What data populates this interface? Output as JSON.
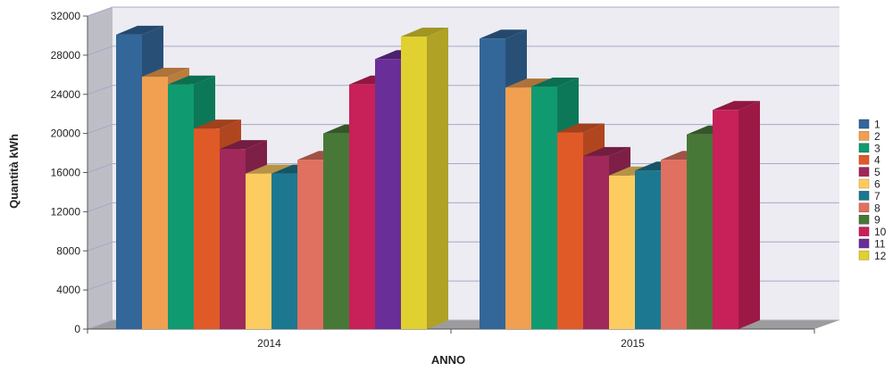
{
  "chart_data": {
    "type": "bar",
    "style": "3d-clustered-column",
    "title": "",
    "xlabel": "ANNO",
    "ylabel": "Quantità kWh",
    "categories": [
      "2014",
      "2015"
    ],
    "ylim": [
      0,
      32000
    ],
    "yticks": [
      0,
      4000,
      8000,
      12000,
      16000,
      20000,
      24000,
      28000,
      32000
    ],
    "grid": true,
    "legend_position": "right",
    "series": [
      {
        "name": "1",
        "color": "#336699",
        "values": [
          30100,
          29700
        ]
      },
      {
        "name": "2",
        "color": "#F0A050",
        "values": [
          25800,
          24700
        ]
      },
      {
        "name": "3",
        "color": "#109A70",
        "values": [
          25000,
          24800
        ]
      },
      {
        "name": "4",
        "color": "#E05A28",
        "values": [
          20500,
          20100
        ]
      },
      {
        "name": "5",
        "color": "#A0285A",
        "values": [
          18400,
          17700
        ]
      },
      {
        "name": "6",
        "color": "#FDCC60",
        "values": [
          15900,
          15700
        ]
      },
      {
        "name": "7",
        "color": "#1C7890",
        "values": [
          15900,
          16200
        ]
      },
      {
        "name": "8",
        "color": "#E07060",
        "values": [
          17300,
          17300
        ]
      },
      {
        "name": "9",
        "color": "#487838",
        "values": [
          20000,
          19900
        ]
      },
      {
        "name": "10",
        "color": "#C82058",
        "values": [
          25000,
          22400
        ]
      },
      {
        "name": "11",
        "color": "#6A2E98",
        "values": [
          27600,
          null
        ]
      },
      {
        "name": "12",
        "color": "#E0D030",
        "values": [
          29900,
          null
        ]
      }
    ]
  }
}
